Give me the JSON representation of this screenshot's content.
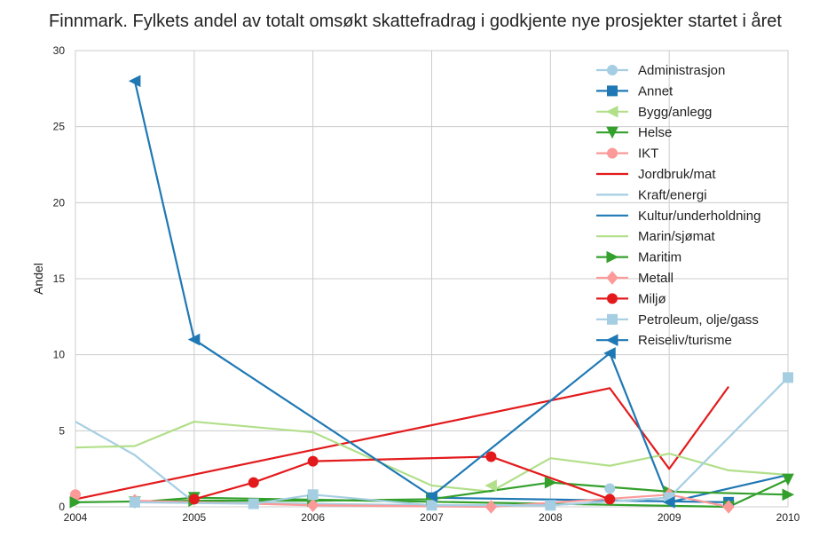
{
  "chart_data": {
    "type": "line",
    "title": "Finnmark. Fylkets andel av totalt omsøkt skattefradrag i godkjente nye prosjekter startet i året",
    "xlabel": "",
    "ylabel": "Andel",
    "xlim": [
      2004,
      2010
    ],
    "ylim": [
      0,
      30
    ],
    "xticks": [
      "2004",
      "2005",
      "2006",
      "2007",
      "2008",
      "2009",
      "2010"
    ],
    "yticks": [
      "0",
      "5",
      "10",
      "15",
      "20",
      "25",
      "30"
    ],
    "grid": true,
    "legend_position": "top-right",
    "series": [
      {
        "name": "Administrasjon",
        "color": "#a6cee3",
        "marker": "circle",
        "x": [
          2008.5
        ],
        "y": [
          1.2
        ]
      },
      {
        "name": "Annet",
        "color": "#1f78b4",
        "marker": "square",
        "x": [
          2007,
          2009.5
        ],
        "y": [
          0.6,
          0.3
        ]
      },
      {
        "name": "Bygg/anlegg",
        "color": "#b2df8a",
        "marker": "tri-left",
        "x": [
          2007.5
        ],
        "y": [
          1.4
        ]
      },
      {
        "name": "Helse",
        "color": "#33a02c",
        "marker": "tri-down",
        "x": [
          2004.5,
          2005,
          2009.5,
          2010
        ],
        "y": [
          0.3,
          0.6,
          0.0,
          1.8
        ]
      },
      {
        "name": "IKT",
        "color": "#fb9a99",
        "marker": "circle",
        "x": [
          2004
        ],
        "y": [
          0.8
        ]
      },
      {
        "name": "Jordbruk/mat",
        "color": "#e31a1c",
        "marker": "none",
        "x": [
          2004,
          2008.5,
          2009,
          2009.5
        ],
        "y": [
          0.5,
          7.8,
          2.5,
          7.9
        ]
      },
      {
        "name": "Kraft/energi",
        "color": "#a6cee3",
        "marker": "none",
        "x": [
          2004,
          2004.5,
          2005,
          2006,
          2007,
          2008,
          2009
        ],
        "y": [
          5.6,
          3.4,
          0.3,
          0.2,
          0.1,
          0.1,
          0.6
        ]
      },
      {
        "name": "Kultur/underholdning",
        "color": "#1f78b4",
        "marker": "none",
        "x": [
          2009,
          2010
        ],
        "y": [
          0.3,
          2.1
        ]
      },
      {
        "name": "Marin/sjømat",
        "color": "#b2df8a",
        "marker": "none",
        "x": [
          2004,
          2004.5,
          2005,
          2006,
          2007,
          2007.5,
          2008,
          2008.5,
          2009,
          2009.5,
          2010
        ],
        "y": [
          3.9,
          4.0,
          5.6,
          4.9,
          1.4,
          1.0,
          3.2,
          2.7,
          3.5,
          2.4,
          2.1
        ]
      },
      {
        "name": "Maritim",
        "color": "#33a02c",
        "marker": "tri-right",
        "x": [
          2004,
          2005,
          2006,
          2007,
          2008,
          2009,
          2010
        ],
        "y": [
          0.3,
          0.4,
          0.4,
          0.5,
          1.6,
          1.0,
          0.8
        ]
      },
      {
        "name": "Metall",
        "color": "#fb9a99",
        "marker": "diamond",
        "x": [
          2004.5,
          2006,
          2007.5,
          2009,
          2009.5
        ],
        "y": [
          0.4,
          0.1,
          0.0,
          0.8,
          0.0
        ]
      },
      {
        "name": "Miljø",
        "color": "#e31a1c",
        "marker": "circle",
        "x": [
          2005,
          2005.5,
          2006,
          2007.5,
          2008.5
        ],
        "y": [
          0.5,
          1.6,
          3.0,
          3.3,
          0.5
        ]
      },
      {
        "name": "Petroleum, olje/gass",
        "color": "#a6cee3",
        "marker": "square",
        "x": [
          2004.5,
          2005.5,
          2006,
          2007,
          2008,
          2009,
          2010
        ],
        "y": [
          0.3,
          0.2,
          0.8,
          0.1,
          0.1,
          0.6,
          8.5
        ]
      },
      {
        "name": "Reiseliv/turisme",
        "color": "#1f78b4",
        "marker": "tri-left",
        "x": [
          2004.5,
          2005,
          2007,
          2008.5,
          2009
        ],
        "y": [
          28.0,
          11.0,
          0.7,
          10.1,
          0.3
        ]
      }
    ]
  }
}
